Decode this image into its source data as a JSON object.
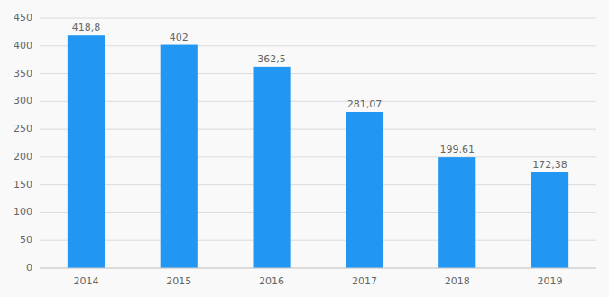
{
  "chart_data": {
    "type": "bar",
    "categories": [
      "2014",
      "2015",
      "2016",
      "2017",
      "2018",
      "2019"
    ],
    "values": [
      418.8,
      402,
      362.5,
      281.07,
      199.61,
      172.38
    ],
    "value_labels": [
      "418,8",
      "402",
      "362,5",
      "281,07",
      "199,61",
      "172,38"
    ],
    "data_labels": true,
    "color": "#2196F3",
    "ylim": [
      0,
      450
    ],
    "yticks": [
      0,
      50,
      100,
      150,
      200,
      250,
      300,
      350,
      400,
      450
    ],
    "grid": true
  }
}
